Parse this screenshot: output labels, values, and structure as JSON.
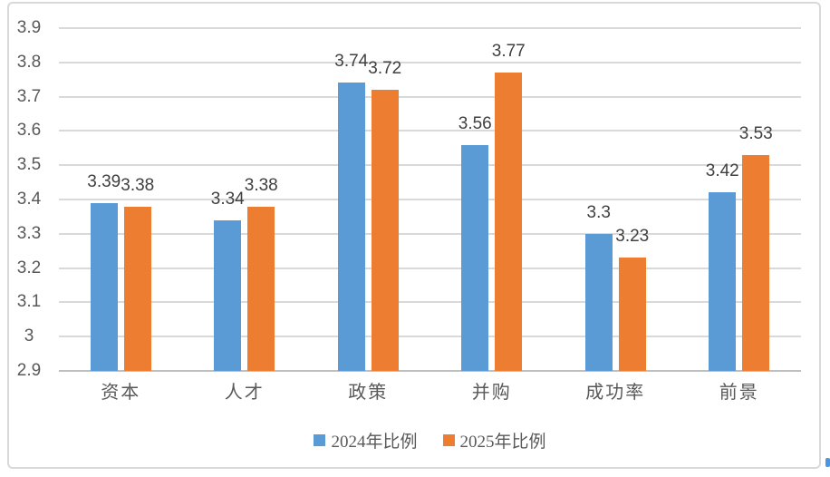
{
  "chart_data": {
    "type": "bar",
    "title": "",
    "xlabel": "",
    "ylabel": "",
    "categories": [
      "资本",
      "人才",
      "政策",
      "并购",
      "成功率",
      "前景"
    ],
    "series": [
      {
        "name": "2024年比例",
        "color": "#5B9BD5",
        "values": [
          3.39,
          3.34,
          3.74,
          3.56,
          3.3,
          3.42
        ],
        "labels": [
          "3.39",
          "3.34",
          "3.74",
          "3.56",
          "3.3",
          "3.42"
        ]
      },
      {
        "name": "2025年比例",
        "color": "#ED7D31",
        "values": [
          3.38,
          3.38,
          3.72,
          3.77,
          3.23,
          3.53
        ],
        "labels": [
          "3.38",
          "3.38",
          "3.72",
          "3.77",
          "3.23",
          "3.53"
        ]
      }
    ],
    "ylim": [
      2.9,
      3.9
    ],
    "ytick_step": 0.1,
    "yticks_bottom_to_top": [
      "2.9",
      "3",
      "3.1",
      "3.2",
      "3.3",
      "3.4",
      "3.5",
      "3.6",
      "3.7",
      "3.8",
      "3.9"
    ],
    "grid": true,
    "data_labels": true,
    "legend_position": "bottom"
  },
  "colors": {
    "grid": "#D9D9D9",
    "axis": "#BFBFBF",
    "tick_text": "#595959",
    "category_text": "#595959",
    "data_label_text": "#404040",
    "legend_text": "#595959",
    "chart_border": "#D9D9D9",
    "background": "#FFFFFF",
    "artifact": "#4B96E0"
  }
}
